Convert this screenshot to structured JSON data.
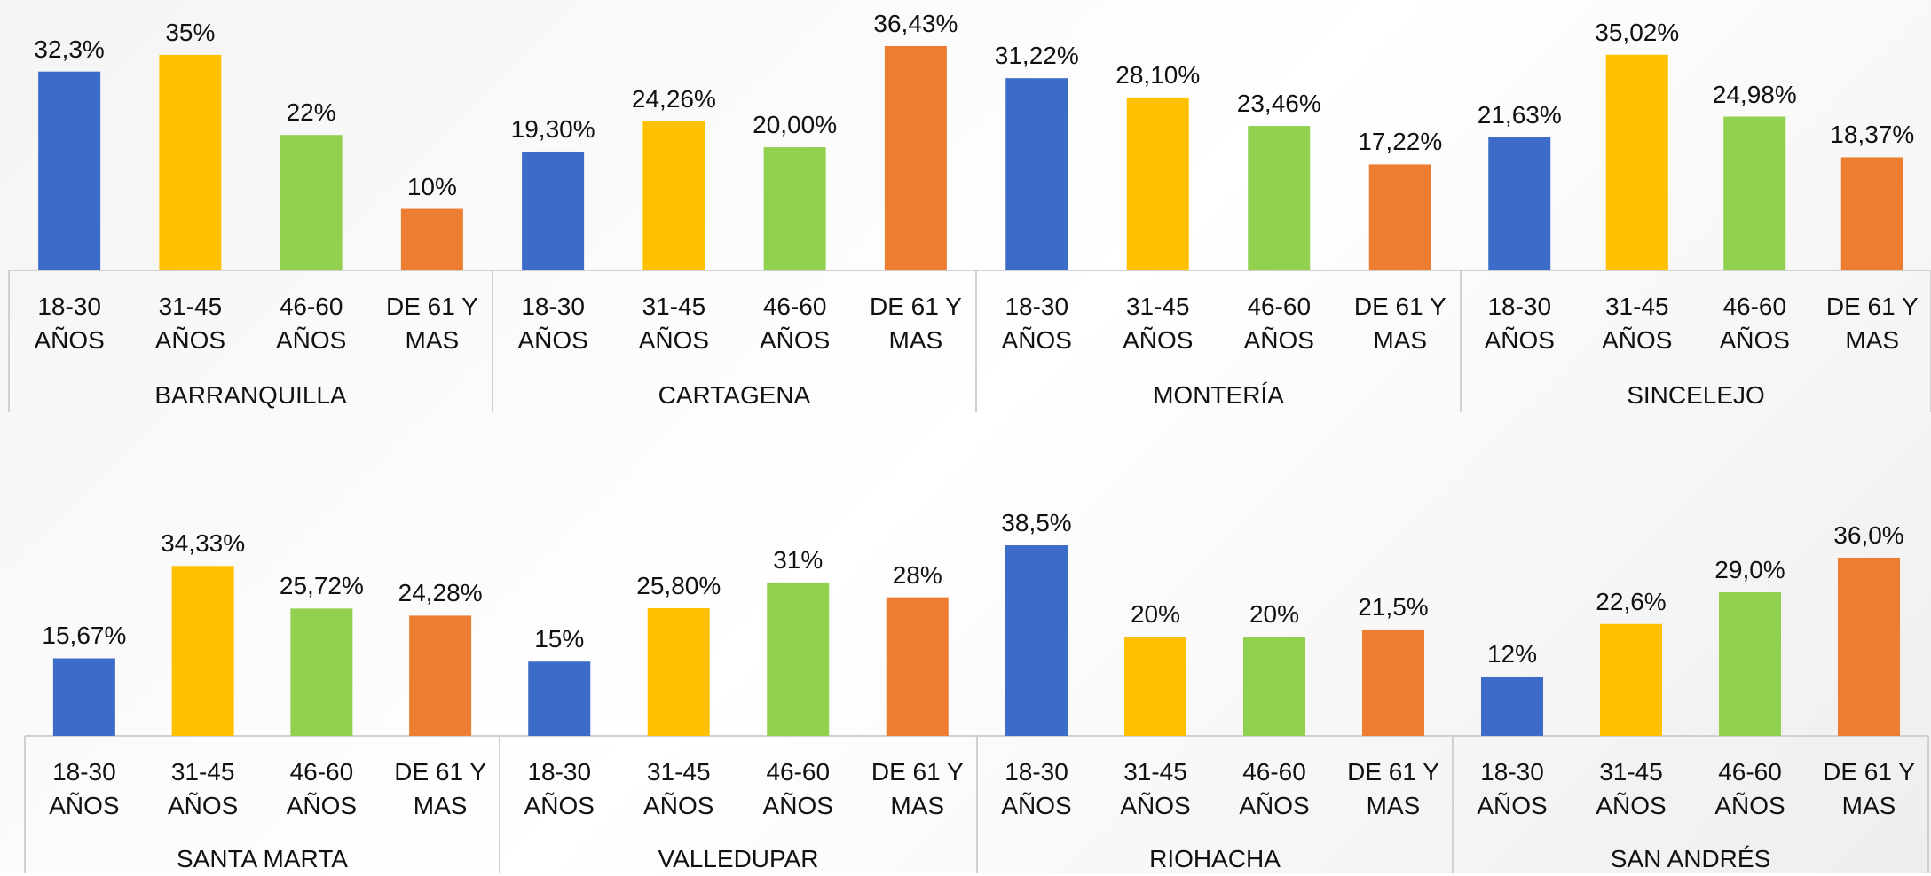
{
  "chart_data": [
    {
      "type": "bar",
      "colors": [
        "#3d6cc8",
        "#ffc000",
        "#92d050",
        "#ed7d31"
      ],
      "groups": [
        {
          "name": "BARRANQUILLA",
          "categories": [
            "18-30 AÑOS",
            "31-45 AÑOS",
            "46-60 AÑOS",
            "DE 61 Y MAS"
          ],
          "values": [
            32.3,
            35,
            22,
            10
          ],
          "value_labels": [
            "32,3%",
            "35%",
            "22%",
            "10%"
          ]
        },
        {
          "name": "CARTAGENA",
          "categories": [
            "18-30 AÑOS",
            "31-45 AÑOS",
            "46-60 AÑOS",
            "DE 61 Y MAS"
          ],
          "values": [
            19.3,
            24.26,
            20,
            36.43
          ],
          "value_labels": [
            "19,30%",
            "24,26%",
            "20,00%",
            "36,43%"
          ]
        },
        {
          "name": "MONTERÍA",
          "categories": [
            "18-30 AÑOS",
            "31-45 AÑOS",
            "46-60 AÑOS",
            "DE 61 Y MAS"
          ],
          "values": [
            31.22,
            28.1,
            23.46,
            17.22
          ],
          "value_labels": [
            "31,22%",
            "28,10%",
            "23,46%",
            "17,22%"
          ]
        },
        {
          "name": "SINCELEJO",
          "categories": [
            "18-30 AÑOS",
            "31-45 AÑOS",
            "46-60 AÑOS",
            "DE 61 Y MAS"
          ],
          "values": [
            21.63,
            35.02,
            24.98,
            18.37
          ],
          "value_labels": [
            "21,63%",
            "35,02%",
            "24,98%",
            "18,37%"
          ]
        }
      ]
    },
    {
      "type": "bar",
      "colors": [
        "#3d6cc8",
        "#ffc000",
        "#92d050",
        "#ed7d31"
      ],
      "groups": [
        {
          "name": "SANTA MARTA",
          "categories": [
            "18-30 AÑOS",
            "31-45 AÑOS",
            "46-60 AÑOS",
            "DE 61 Y MAS"
          ],
          "values": [
            15.67,
            34.33,
            25.72,
            24.28
          ],
          "value_labels": [
            "15,67%",
            "34,33%",
            "25,72%",
            "24,28%"
          ]
        },
        {
          "name": "VALLEDUPAR",
          "categories": [
            "18-30 AÑOS",
            "31-45 AÑOS",
            "46-60 AÑOS",
            "DE 61 Y MAS"
          ],
          "values": [
            15,
            25.8,
            31,
            28
          ],
          "value_labels": [
            "15%",
            "25,80%",
            "31%",
            "28%"
          ]
        },
        {
          "name": "RIOHACHA",
          "categories": [
            "18-30 AÑOS",
            "31-45 AÑOS",
            "46-60 AÑOS",
            "DE 61 Y MAS"
          ],
          "values": [
            38.5,
            20,
            20,
            21.5
          ],
          "value_labels": [
            "38,5%",
            "20%",
            "20%",
            "21,5%"
          ]
        },
        {
          "name": "SAN ANDRÉS",
          "categories": [
            "18-30 AÑOS",
            "31-45 AÑOS",
            "46-60 AÑOS",
            "DE 61 Y MAS"
          ],
          "values": [
            12,
            22.6,
            29,
            36
          ],
          "value_labels": [
            "12%",
            "22,6%",
            "29,0%",
            "36,0%"
          ]
        }
      ]
    }
  ]
}
